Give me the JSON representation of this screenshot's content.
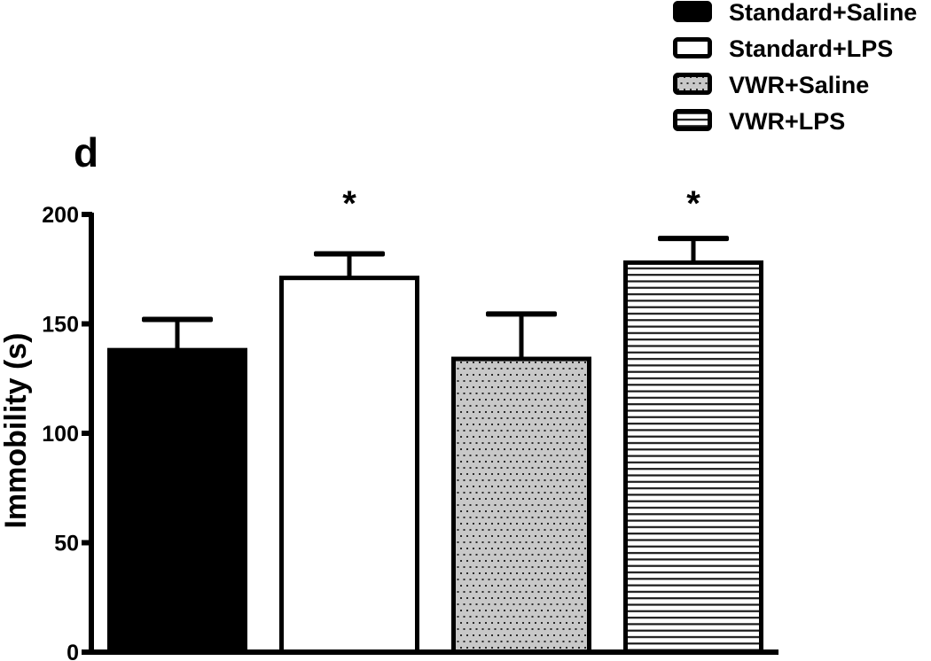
{
  "chart_data": {
    "type": "bar",
    "panel_label": "d",
    "title": "",
    "xlabel": "",
    "ylabel": "Immobility (s)",
    "categories": [
      "Standard+Saline",
      "Standard+LPS",
      "VWR+Saline",
      "VWR+LPS"
    ],
    "values": [
      139,
      172,
      135,
      179
    ],
    "errors": [
      13,
      10,
      19.5,
      10
    ],
    "error_type": "upper error bar (SEM)",
    "significance": [
      "",
      "*",
      "",
      "*"
    ],
    "annotation_y": 208,
    "ylim": [
      0,
      200
    ],
    "yticks": [
      0,
      50,
      100,
      150,
      200
    ],
    "ytick_labels": [
      "0",
      "50",
      "100",
      "150",
      "200"
    ],
    "grid": false,
    "legend": {
      "position": "top-right",
      "entries": [
        "Standard+Saline",
        "Standard+LPS",
        "VWR+Saline",
        "VWR+LPS"
      ]
    },
    "series_style": [
      {
        "name": "Standard+Saline",
        "fill": "#000000",
        "pattern": "solid"
      },
      {
        "name": "Standard+LPS",
        "fill": "#ffffff",
        "pattern": "none"
      },
      {
        "name": "VWR+Saline",
        "fill": "#c8c8c8",
        "pattern": "dots"
      },
      {
        "name": "VWR+LPS",
        "fill": "#ffffff",
        "pattern": "horizontal-lines"
      }
    ]
  },
  "colors": {
    "axis": "#000000",
    "bar_outline": "#000000",
    "dot_color": "#2a2a2a",
    "hline_color": "#1a1a1a"
  }
}
